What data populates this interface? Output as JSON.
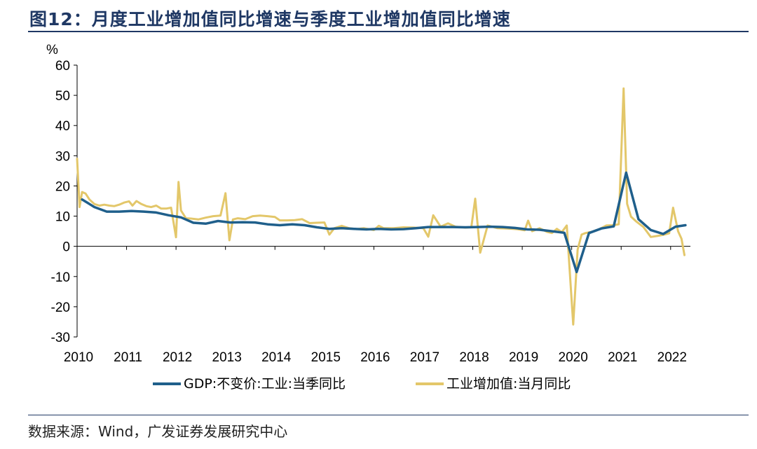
{
  "header": {
    "title": "图12：月度工业增加值同比增速与季度工业增加值同比增速"
  },
  "footer": {
    "source": "数据来源：Wind，广发证券发展研究中心"
  },
  "colors": {
    "gdp": "#1f5f8b",
    "ind": "#e3c76a",
    "title": "#1f3864"
  },
  "chart_data": {
    "type": "line",
    "title": "",
    "ylabel": "%",
    "xlabel": "",
    "ylim": [
      -30,
      60
    ],
    "yticks": [
      60,
      50,
      40,
      30,
      20,
      10,
      0,
      -10,
      -20,
      -30
    ],
    "xlim": [
      2010.0,
      2022.4
    ],
    "xticks": [
      "2010",
      "2011",
      "2012",
      "2013",
      "2014",
      "2015",
      "2016",
      "2017",
      "2018",
      "2019",
      "2020",
      "2021",
      "2022"
    ],
    "legend_position": "bottom",
    "grid": false,
    "series": [
      {
        "name": "GDP:不变价:工业:当季同比",
        "color": "#1f5f8b",
        "x": [
          2010.1,
          2010.35,
          2010.6,
          2010.85,
          2011.1,
          2011.35,
          2011.6,
          2011.85,
          2012.1,
          2012.35,
          2012.6,
          2012.85,
          2013.1,
          2013.35,
          2013.6,
          2013.85,
          2014.1,
          2014.35,
          2014.6,
          2014.85,
          2015.1,
          2015.35,
          2015.6,
          2015.85,
          2016.1,
          2016.35,
          2016.6,
          2016.85,
          2017.1,
          2017.35,
          2017.6,
          2017.85,
          2018.1,
          2018.35,
          2018.6,
          2018.85,
          2019.1,
          2019.35,
          2019.6,
          2019.85,
          2020.1,
          2020.35,
          2020.6,
          2020.85,
          2021.1,
          2021.35,
          2021.6,
          2021.85,
          2022.1,
          2022.3
        ],
        "values": [
          15.5,
          13.0,
          11.5,
          11.5,
          11.7,
          11.5,
          11.2,
          10.3,
          9.6,
          7.8,
          7.5,
          8.4,
          7.9,
          8.0,
          7.9,
          7.3,
          7.0,
          7.3,
          7.0,
          6.3,
          5.8,
          6.0,
          5.8,
          5.6,
          5.8,
          5.6,
          5.7,
          6.0,
          6.4,
          6.4,
          6.4,
          6.3,
          6.4,
          6.5,
          6.4,
          6.1,
          5.6,
          5.5,
          5.0,
          4.5,
          -8.5,
          4.4,
          5.9,
          6.6,
          24.4,
          9.0,
          5.4,
          4.1,
          6.5,
          7.0
        ]
      },
      {
        "name": "工业增加值:当月同比",
        "color": "#e3c76a",
        "x": [
          2010.0,
          2010.05,
          2010.1,
          2010.17,
          2010.25,
          2010.35,
          2010.45,
          2010.55,
          2010.65,
          2010.75,
          2010.85,
          2010.95,
          2011.05,
          2011.12,
          2011.2,
          2011.3,
          2011.4,
          2011.5,
          2011.6,
          2011.7,
          2011.8,
          2011.9,
          2012.0,
          2012.05,
          2012.1,
          2012.2,
          2012.3,
          2012.45,
          2012.6,
          2012.75,
          2012.9,
          2013.0,
          2013.08,
          2013.15,
          2013.25,
          2013.4,
          2013.55,
          2013.7,
          2013.85,
          2014.0,
          2014.1,
          2014.25,
          2014.4,
          2014.55,
          2014.7,
          2014.85,
          2015.0,
          2015.1,
          2015.2,
          2015.35,
          2015.5,
          2015.65,
          2015.8,
          2016.0,
          2016.1,
          2016.2,
          2016.4,
          2016.6,
          2016.8,
          2017.0,
          2017.1,
          2017.2,
          2017.35,
          2017.5,
          2017.65,
          2017.85,
          2017.97,
          2018.05,
          2018.15,
          2018.3,
          2018.5,
          2018.7,
          2018.9,
          2019.05,
          2019.12,
          2019.2,
          2019.35,
          2019.5,
          2019.6,
          2019.7,
          2019.8,
          2019.9,
          2020.03,
          2020.12,
          2020.2,
          2020.28,
          2020.4,
          2020.55,
          2020.7,
          2020.85,
          2020.95,
          2021.05,
          2021.12,
          2021.2,
          2021.3,
          2021.45,
          2021.6,
          2021.75,
          2021.85,
          2021.97,
          2022.05,
          2022.15,
          2022.22,
          2022.28
        ],
        "values": [
          29.0,
          13.0,
          18.0,
          17.5,
          15.5,
          14.0,
          13.5,
          13.8,
          13.5,
          13.3,
          13.8,
          14.5,
          14.9,
          13.5,
          15.0,
          14.0,
          13.3,
          13.0,
          13.5,
          12.5,
          12.5,
          12.8,
          3.0,
          21.3,
          11.9,
          9.3,
          9.2,
          8.9,
          9.5,
          10.0,
          10.2,
          17.6,
          2.0,
          8.9,
          9.3,
          9.0,
          10.0,
          10.2,
          10.0,
          9.7,
          8.6,
          8.6,
          8.7,
          9.0,
          7.7,
          7.8,
          7.9,
          3.9,
          6.0,
          6.8,
          6.0,
          5.7,
          6.0,
          5.4,
          6.8,
          6.0,
          6.0,
          6.3,
          6.2,
          6.0,
          3.2,
          10.3,
          6.5,
          7.6,
          6.5,
          6.2,
          6.3,
          15.8,
          -2.1,
          6.9,
          6.0,
          5.9,
          5.7,
          5.3,
          8.5,
          5.0,
          6.0,
          4.8,
          4.4,
          5.8,
          4.7,
          6.9,
          -25.9,
          -1.1,
          3.9,
          4.4,
          4.8,
          5.6,
          6.9,
          7.0,
          7.3,
          52.3,
          14.1,
          9.8,
          8.3,
          6.4,
          3.1,
          3.5,
          3.8,
          4.3,
          12.8,
          5.0,
          2.5,
          -2.9
        ]
      }
    ]
  }
}
